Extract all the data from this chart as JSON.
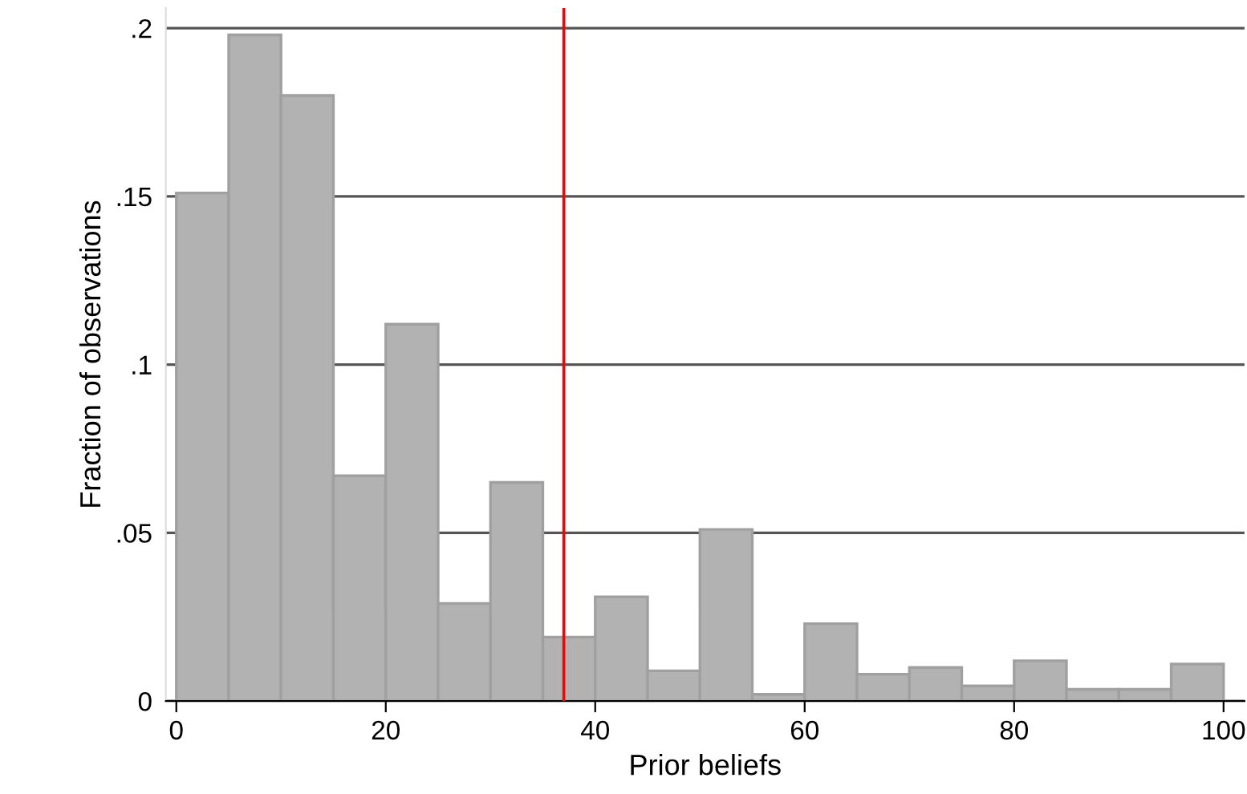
{
  "chart_data": {
    "type": "histogram",
    "xlabel": "Prior beliefs",
    "ylabel": "Fraction of observations",
    "bins": [
      0,
      5,
      10,
      15,
      20,
      25,
      30,
      35,
      40,
      45,
      50,
      55,
      60,
      65,
      70,
      75,
      80,
      85,
      90,
      95,
      100
    ],
    "values": [
      0.151,
      0.198,
      0.18,
      0.067,
      0.112,
      0.029,
      0.065,
      0.019,
      0.031,
      0.009,
      0.051,
      0.002,
      0.023,
      0.008,
      0.01,
      0.0045,
      0.012,
      0.0035,
      0.0035,
      0.011
    ],
    "color": "#b2b2b2",
    "xlim": [
      -1,
      102
    ],
    "ylim": [
      0,
      0.206
    ],
    "xticks": [
      0,
      20,
      40,
      60,
      80,
      100
    ],
    "yticks": [
      {
        "value": 0,
        "label": "0"
      },
      {
        "value": 0.05,
        "label": ".05"
      },
      {
        "value": 0.1,
        "label": ".1"
      },
      {
        "value": 0.15,
        "label": ".15"
      },
      {
        "value": 0.2,
        "label": ".2"
      }
    ],
    "grid": "y",
    "ref_lines": [
      {
        "axis": "x",
        "value": 37,
        "color": "#ff0000"
      }
    ]
  }
}
